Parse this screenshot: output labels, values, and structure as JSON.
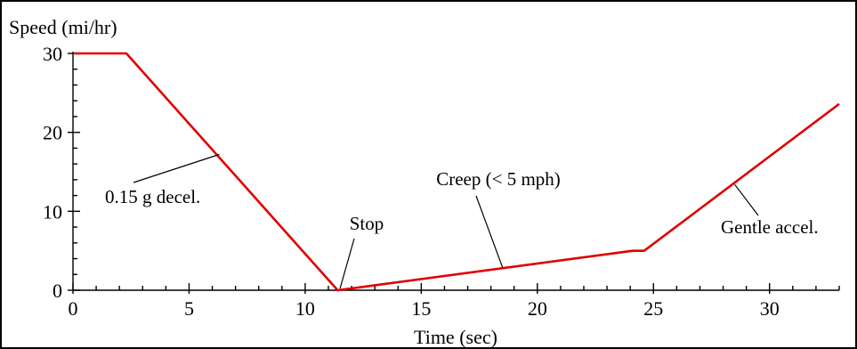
{
  "chart_data": {
    "type": "line",
    "title": "",
    "xlabel": "Time (sec)",
    "ylabel": "Speed (mi/hr)",
    "xlim": [
      0,
      33
    ],
    "ylim": [
      0,
      30
    ],
    "xticks": [
      0,
      5,
      10,
      15,
      20,
      25,
      30
    ],
    "yticks": [
      0,
      10,
      20,
      30
    ],
    "x_minor_step": 1,
    "y_minor_step": 2,
    "grid": false,
    "legend": "none",
    "series": [
      {
        "color": "#e00000",
        "x": [
          0,
          2.3,
          11.4,
          24.1,
          24.6,
          33
        ],
        "y": [
          30,
          30,
          0,
          5,
          5,
          23.6
        ]
      }
    ],
    "annotations": [
      {
        "text": "0.15 g decel.",
        "point": [
          6.3,
          17.2
        ]
      },
      {
        "text": "Stop",
        "point": [
          11.5,
          0.2
        ]
      },
      {
        "text": "Creep (< 5 mph)",
        "point": [
          18.5,
          2.9
        ]
      },
      {
        "text": "Gentle accel.",
        "point": [
          28.5,
          13.4
        ]
      }
    ]
  }
}
